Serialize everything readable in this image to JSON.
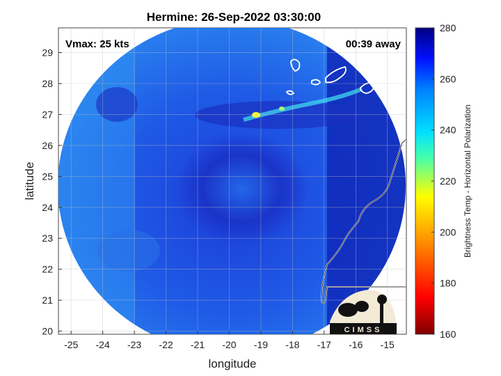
{
  "chart_data": {
    "type": "heatmap",
    "title": "Hermine: 26-Sep-2022 03:30:00",
    "xlabel": "longitude",
    "ylabel": "latitude",
    "xlim": [
      -25.4,
      -14.4
    ],
    "ylim": [
      19.9,
      29.8
    ],
    "xticks": [
      -25,
      -24,
      -23,
      -22,
      -21,
      -20,
      -19,
      -18,
      -17,
      -16,
      -15
    ],
    "yticks": [
      20,
      21,
      22,
      23,
      24,
      25,
      26,
      27,
      28,
      29
    ],
    "grid": true,
    "annotations": {
      "top_left": "Vmax: 25 kts",
      "top_right": "00:39 away"
    },
    "colorbar": {
      "label": "Brightness Temp - Horizontal Polarization",
      "range": [
        160,
        280
      ],
      "ticks": [
        160,
        180,
        200,
        220,
        240,
        260,
        280
      ],
      "colormap": "jet"
    },
    "storm_center": {
      "lon": -19.6,
      "lat": 24.6
    },
    "bright_band": {
      "lat_range": [
        26.8,
        27.6
      ],
      "lon_range": [
        -19.6,
        -15.6
      ]
    },
    "logo_text": "CIMSS"
  }
}
